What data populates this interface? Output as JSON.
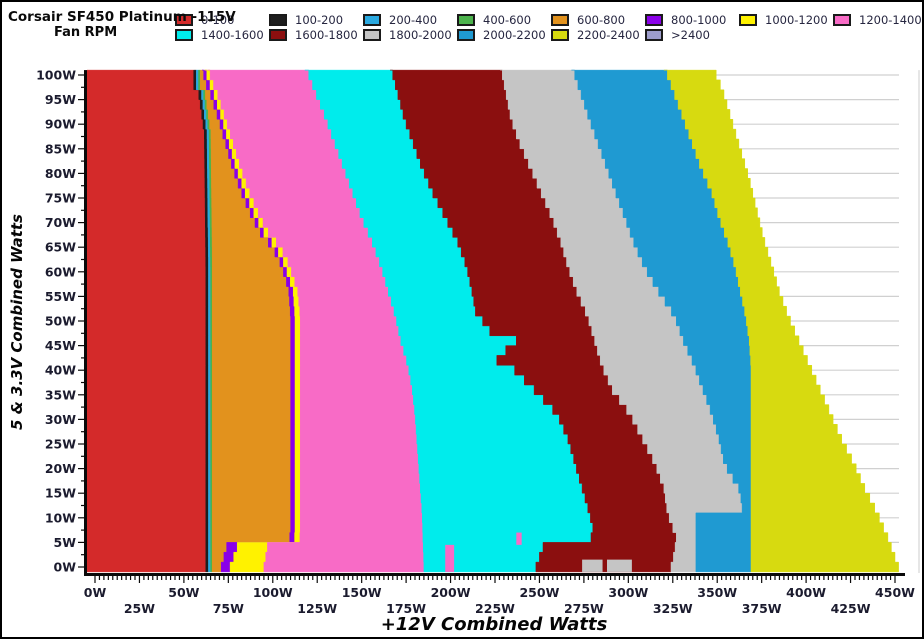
{
  "header": {
    "title": "Corsair SF450 Platinum -115V",
    "subtitle": "Fan RPM"
  },
  "legend": {
    "rows": [
      [
        {
          "label": "0-100",
          "color": "#d42a2a"
        },
        {
          "label": "100-200",
          "color": "#1e1e1e"
        },
        {
          "label": "200-400",
          "color": "#2aa9e0"
        },
        {
          "label": "400-600",
          "color": "#4cb34c"
        },
        {
          "label": "600-800",
          "color": "#e2921d"
        },
        {
          "label": "800-1000",
          "color": "#8a00e8"
        },
        {
          "label": "1000-1200",
          "color": "#fff200"
        },
        {
          "label": "1200-1400",
          "color": "#f86bc6"
        }
      ],
      [
        {
          "label": "1400-1600",
          "color": "#00ecec"
        },
        {
          "label": "1600-1800",
          "color": "#8b0f0f"
        },
        {
          "label": "1800-2000",
          "color": "#c5c5c5"
        },
        {
          "label": "2000-2200",
          "color": "#1f9ad2"
        },
        {
          "label": "2200-2400",
          "color": "#d7da10"
        },
        {
          "label": ">2400",
          "color": "#9d9dcb"
        }
      ]
    ]
  },
  "chart_data": {
    "type": "heatmap",
    "title": "Corsair SF450 Platinum -115V Fan RPM",
    "xlabel": "+12V Combined Watts",
    "ylabel": "5 & 3.3V Combined Watts",
    "x_range": [
      0,
      450
    ],
    "y_range": [
      0,
      100
    ],
    "x_ticks": {
      "values": [
        0,
        25,
        50,
        75,
        100,
        125,
        150,
        175,
        200,
        225,
        250,
        275,
        300,
        325,
        350,
        375,
        400,
        425,
        450
      ],
      "labels": [
        "0W",
        "25W",
        "50W",
        "75W",
        "100W",
        "125W",
        "150W",
        "175W",
        "200W",
        "225W",
        "250W",
        "275W",
        "300W",
        "325W",
        "350W",
        "375W",
        "400W",
        "425W",
        "450W"
      ]
    },
    "y_ticks": {
      "values": [
        0,
        5,
        10,
        15,
        20,
        25,
        30,
        35,
        40,
        45,
        50,
        55,
        60,
        65,
        70,
        75,
        80,
        85,
        90,
        95,
        100
      ],
      "labels": [
        "0W",
        "5W",
        "10W",
        "15W",
        "20W",
        "25W",
        "30W",
        "35W",
        "40W",
        "45W",
        "50W",
        "55W",
        "60W",
        "65W",
        "70W",
        "75W",
        "80W",
        "85W",
        "90W",
        "95W",
        "100W"
      ]
    },
    "x_minor_step": 2.5,
    "y_minor_step": 2.5,
    "grid": "horizontal gray lines every 5W, legend at top, white = no data (beyond 2200-2400 region)",
    "bands": [
      {
        "rpm": "0-100",
        "color": "#d42a2a"
      },
      {
        "rpm": "100-200",
        "color": "#1e1e1e"
      },
      {
        "rpm": "200-400",
        "color": "#2aa9e0"
      },
      {
        "rpm": "400-600",
        "color": "#4cb34c"
      },
      {
        "rpm": "600-800",
        "color": "#e2921d"
      },
      {
        "rpm": "800-1000",
        "color": "#8a00e8"
      },
      {
        "rpm": "1000-1200",
        "color": "#fff200"
      },
      {
        "rpm": "1200-1400",
        "color": "#f86bc6"
      },
      {
        "rpm": "1400-1600",
        "color": "#00ecec"
      },
      {
        "rpm": "1600-1800",
        "color": "#8b0f0f"
      },
      {
        "rpm": "1800-2000",
        "color": "#c5c5c5"
      },
      {
        "rpm": "2000-2200",
        "color": "#1f9ad2"
      },
      {
        "rpm": "2200-2400",
        "color": "#d7da10"
      }
    ],
    "boundaries": [
      {
        "between": "left-axis",
        "points": [
          [
            101,
            -10
          ],
          [
            -1,
            -10
          ]
        ]
      },
      {
        "between": "0-100|100-200",
        "points": [
          [
            101,
            55.5
          ],
          [
            97,
            55.5
          ],
          [
            96,
            58
          ],
          [
            91,
            60
          ],
          [
            87,
            61.5
          ],
          [
            60,
            62.3
          ],
          [
            -1,
            62.3
          ]
        ]
      },
      {
        "between": "100-200|200-400",
        "points": [
          [
            101,
            57
          ],
          [
            97,
            57
          ],
          [
            96,
            59.5
          ],
          [
            91,
            61.5
          ],
          [
            87,
            63
          ],
          [
            60,
            63.8
          ],
          [
            -1,
            63.8
          ]
        ]
      },
      {
        "between": "200-400|400-600",
        "points": [
          [
            101,
            58.2
          ],
          [
            97,
            58.2
          ],
          [
            96,
            60.7
          ],
          [
            91,
            62.7
          ],
          [
            87,
            64.2
          ],
          [
            60,
            65
          ],
          [
            -1,
            65
          ]
        ]
      },
      {
        "between": "400-600|600-800",
        "points": [
          [
            101,
            59.2
          ],
          [
            97,
            59.2
          ],
          [
            96,
            61.7
          ],
          [
            91,
            63.7
          ],
          [
            87,
            65.2
          ],
          [
            60,
            66
          ],
          [
            -1,
            66
          ]
        ]
      },
      {
        "between": "600-800|800-1000",
        "points": [
          [
            101,
            60.2
          ],
          [
            98,
            61.5
          ],
          [
            95,
            65
          ],
          [
            90,
            69.5
          ],
          [
            85,
            73.5
          ],
          [
            80,
            77.5
          ],
          [
            75,
            82.5
          ],
          [
            70,
            88.5
          ],
          [
            67,
            93
          ],
          [
            65,
            97.5
          ],
          [
            62,
            103
          ],
          [
            58,
            107
          ],
          [
            55,
            109
          ],
          [
            50,
            110
          ],
          [
            6,
            110
          ],
          [
            4,
            109
          ],
          [
            3,
            74
          ],
          [
            -1,
            71
          ]
        ]
      },
      {
        "between": "800-1000|1000-1200",
        "points": [
          [
            101,
            61.7
          ],
          [
            98,
            63.5
          ],
          [
            95,
            67
          ],
          [
            90,
            71.5
          ],
          [
            85,
            75.5
          ],
          [
            80,
            79.5
          ],
          [
            75,
            84.5
          ],
          [
            70,
            90.5
          ],
          [
            67,
            95
          ],
          [
            65,
            99.5
          ],
          [
            62,
            105
          ],
          [
            58,
            109
          ],
          [
            55,
            111.5
          ],
          [
            50,
            112.5
          ],
          [
            6,
            112.5
          ],
          [
            4,
            112
          ],
          [
            3,
            80
          ],
          [
            -1,
            76
          ]
        ]
      },
      {
        "between": "1000-1200|1200-1400",
        "points": [
          [
            101,
            63.2
          ],
          [
            98,
            65.5
          ],
          [
            95,
            69
          ],
          [
            90,
            73.5
          ],
          [
            85,
            77.8
          ],
          [
            80,
            82
          ],
          [
            75,
            87
          ],
          [
            70,
            93
          ],
          [
            67,
            97.5
          ],
          [
            65,
            102
          ],
          [
            62,
            107.5
          ],
          [
            58,
            111.5
          ],
          [
            55,
            114
          ],
          [
            50,
            115.5
          ],
          [
            6,
            115.5
          ],
          [
            4,
            115
          ],
          [
            3,
            97
          ],
          [
            -1,
            95
          ]
        ]
      },
      {
        "between": "1200-1400|1400-1600",
        "points": [
          [
            101,
            118
          ],
          [
            90,
            130
          ],
          [
            80,
            140
          ],
          [
            70,
            150
          ],
          [
            65,
            156
          ],
          [
            60,
            161
          ],
          [
            55,
            165
          ],
          [
            50,
            169
          ],
          [
            45,
            172
          ],
          [
            40,
            176
          ],
          [
            35,
            178.5
          ],
          [
            30,
            180
          ],
          [
            25,
            181
          ],
          [
            20,
            182
          ],
          [
            15,
            183
          ],
          [
            10,
            184
          ],
          [
            -1,
            185
          ]
        ]
      },
      {
        "between": "1400-1600|1600-1800",
        "points": [
          [
            101,
            166
          ],
          [
            90,
            174
          ],
          [
            80,
            184
          ],
          [
            75,
            190
          ],
          [
            70,
            197
          ],
          [
            65,
            204
          ],
          [
            60,
            209
          ],
          [
            55,
            212
          ],
          [
            51,
            214
          ],
          [
            47,
            222
          ],
          [
            45,
            237
          ],
          [
            43,
            231
          ],
          [
            41,
            226
          ],
          [
            39,
            236
          ],
          [
            35,
            247
          ],
          [
            30,
            260
          ],
          [
            25,
            266
          ],
          [
            20,
            270
          ],
          [
            15,
            274
          ],
          [
            10,
            278
          ],
          [
            7,
            280
          ],
          [
            5,
            279
          ],
          [
            3,
            252
          ],
          [
            -1,
            248
          ]
        ]
      },
      {
        "between": "1600-1800|1800-2000",
        "points": [
          [
            101,
            228
          ],
          [
            90,
            234
          ],
          [
            85,
            239
          ],
          [
            80,
            245
          ],
          [
            75,
            251
          ],
          [
            70,
            257
          ],
          [
            65,
            262
          ],
          [
            60,
            266
          ],
          [
            55,
            271
          ],
          [
            50,
            277
          ],
          [
            45,
            281
          ],
          [
            40,
            285
          ],
          [
            35,
            291
          ],
          [
            30,
            301
          ],
          [
            25,
            308
          ],
          [
            20,
            315
          ],
          [
            15,
            320
          ],
          [
            10,
            322
          ],
          [
            5,
            327
          ],
          [
            2,
            326
          ],
          [
            -1,
            324
          ]
        ]
      },
      {
        "between": "1800-2000|2000-2200",
        "points": [
          [
            101,
            268
          ],
          [
            90,
            278
          ],
          [
            80,
            288
          ],
          [
            75,
            293
          ],
          [
            70,
            298
          ],
          [
            65,
            303
          ],
          [
            60,
            309
          ],
          [
            55,
            317
          ],
          [
            50,
            326
          ],
          [
            45,
            331
          ],
          [
            40,
            337
          ],
          [
            35,
            342
          ],
          [
            30,
            347
          ],
          [
            25,
            351
          ],
          [
            20,
            354
          ],
          [
            15,
            362
          ],
          [
            12,
            364
          ],
          [
            11,
            364
          ],
          [
            10,
            338
          ],
          [
            -1,
            338
          ]
        ]
      },
      {
        "between": "2000-2200|2200-2400",
        "points": [
          [
            101,
            320
          ],
          [
            90,
            331
          ],
          [
            80,
            341
          ],
          [
            75,
            347
          ],
          [
            70,
            351
          ],
          [
            65,
            356
          ],
          [
            60,
            360
          ],
          [
            55,
            363
          ],
          [
            50,
            366
          ],
          [
            45,
            368
          ],
          [
            40,
            369
          ],
          [
            -1,
            369
          ]
        ]
      },
      {
        "between": "2200-2400|no-data",
        "points": [
          [
            101,
            347
          ],
          [
            96,
            353
          ],
          [
            90,
            358
          ],
          [
            84,
            363
          ],
          [
            78,
            368
          ],
          [
            72,
            372
          ],
          [
            66,
            376
          ],
          [
            60,
            381
          ],
          [
            55,
            385
          ],
          [
            50,
            390
          ],
          [
            45,
            396
          ],
          [
            40,
            402
          ],
          [
            35,
            408
          ],
          [
            30,
            414
          ],
          [
            25,
            420
          ],
          [
            20,
            427
          ],
          [
            15,
            433
          ],
          [
            10,
            440
          ],
          [
            5,
            446
          ],
          [
            0,
            451
          ],
          [
            -1,
            452
          ]
        ]
      }
    ],
    "extras": [
      {
        "name": "pink-remnant-stripe",
        "color": "#f86bc6",
        "x": [
          197,
          202
        ],
        "y": [
          -1,
          4.5
        ]
      },
      {
        "name": "pink-remnant-dot",
        "color": "#f86bc6",
        "x": [
          237,
          240
        ],
        "y": [
          4.5,
          7
        ]
      },
      {
        "name": "gray-remnant-1",
        "color": "#c5c5c5",
        "x": [
          274,
          285.5
        ],
        "y": [
          -1,
          1.5
        ]
      },
      {
        "name": "gray-remnant-2",
        "color": "#c5c5c5",
        "x": [
          288,
          302
        ],
        "y": [
          -1,
          1.5
        ]
      }
    ],
    "colors": {
      "gridline": "#d0d0d0",
      "axis": "#0a0a0a",
      "tick_label": "#1b1b2e"
    }
  }
}
